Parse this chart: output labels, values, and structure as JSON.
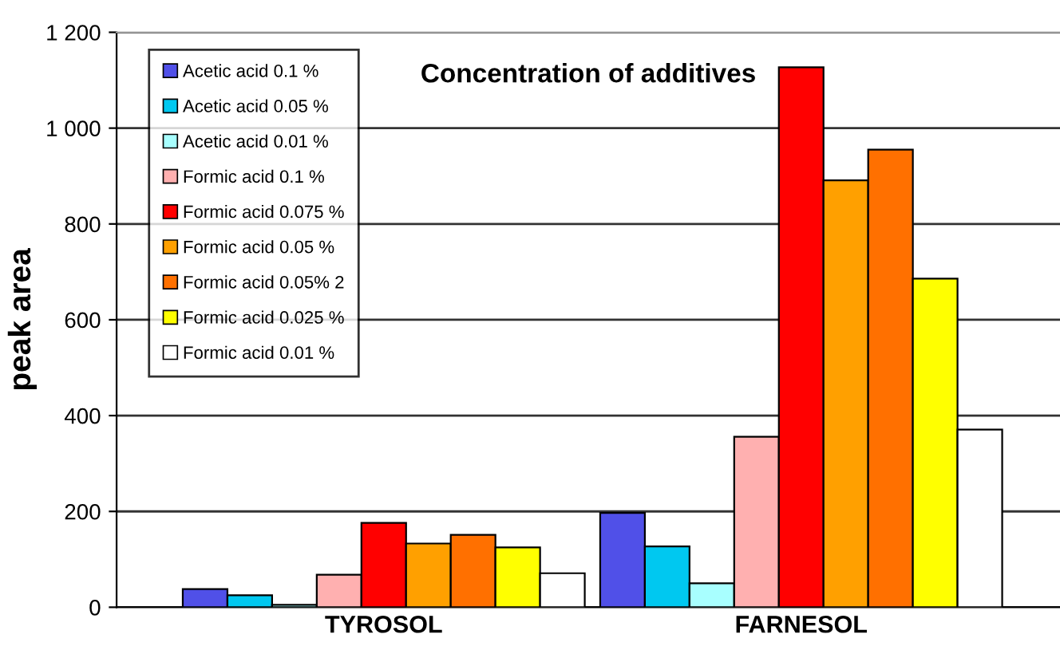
{
  "chart_data": {
    "type": "bar",
    "title": "Concentration of additives",
    "ylabel": "peak area",
    "categories": [
      "TYROSOL",
      "FARNESOL"
    ],
    "series": [
      {
        "name": "Acetic acid 0.1 %",
        "color": "#5050e8",
        "values": [
          38,
          197
        ]
      },
      {
        "name": "Acetic acid 0.05 %",
        "color": "#00c8f0",
        "values": [
          25,
          127
        ]
      },
      {
        "name": "Acetic acid 0.01 %",
        "color": "#a8ffff",
        "values": [
          5,
          50
        ]
      },
      {
        "name": "Formic acid 0.1 %",
        "color": "#ffb0b0",
        "values": [
          68,
          356
        ]
      },
      {
        "name": "Formic acid 0.075 %",
        "color": "#ff0000",
        "values": [
          176,
          1127
        ]
      },
      {
        "name": "Formic acid 0.05 %",
        "color": "#ffa000",
        "values": [
          133,
          891
        ]
      },
      {
        "name": "Formic acid 0.05% 2",
        "color": "#ff7000",
        "values": [
          151,
          955
        ]
      },
      {
        "name": "Formic acid 0.025 %",
        "color": "#ffff00",
        "values": [
          125,
          686
        ]
      },
      {
        "name": "Formic acid 0.01 %",
        "color": "#ffffff",
        "values": [
          71,
          371
        ]
      }
    ],
    "ylim": [
      0,
      1200
    ],
    "yticks": [
      0,
      200,
      400,
      600,
      800,
      {
        "value": 1000,
        "label": "1 000"
      },
      {
        "value": 1200,
        "label": "1 200"
      }
    ],
    "grid": "y",
    "legend": "top left"
  }
}
